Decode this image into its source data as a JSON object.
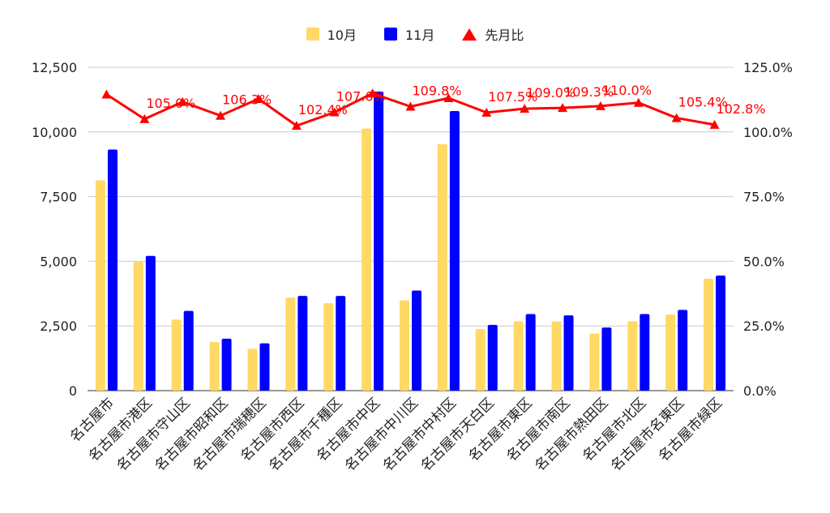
{
  "chart_data": {
    "type": "bar",
    "categories": [
      "名古屋市",
      "名古屋市港区",
      "名古屋市守山区",
      "名古屋市昭和区",
      "名古屋市瑞穂区",
      "名古屋市西区",
      "名古屋市千種区",
      "名古屋市中区",
      "名古屋市中川区",
      "名古屋市中村区",
      "名古屋市天白区",
      "名古屋市東区",
      "名古屋市南区",
      "名古屋市熱田区",
      "名古屋市北区",
      "名古屋市名東区",
      "名古屋市緑区"
    ],
    "series": [
      {
        "name": "10月",
        "color": "#ffd966",
        "axis": "left",
        "values": [
          8130,
          4980,
          2750,
          1880,
          1620,
          3600,
          3380,
          10130,
          3490,
          9530,
          2380,
          2680,
          2680,
          2210,
          2680,
          2940,
          4330
        ]
      },
      {
        "name": "11月",
        "color": "#0000ff",
        "axis": "left",
        "values": [
          9320,
          5210,
          3080,
          2010,
          1830,
          3660,
          3660,
          11560,
          3870,
          10810,
          2540,
          2960,
          2910,
          2440,
          2960,
          3120,
          4450
        ]
      },
      {
        "name": "先月比",
        "color": "#ff0000",
        "axis": "right",
        "type": "line",
        "marker": "triangle",
        "values": [
          114.5,
          105.0,
          111.6,
          106.3,
          112.8,
          102.4,
          107.6,
          114.9,
          109.8,
          113.1,
          107.5,
          109.0,
          109.3,
          110.0,
          111.3,
          105.4,
          102.8
        ]
      }
    ],
    "data_labels": {
      "1": "105.0%",
      "3": "106.3%",
      "5": "102.4%",
      "6": "107.6%",
      "8": "109.8%",
      "10": "107.5%",
      "11": "109.0%",
      "12": "109.3%",
      "13": "110.0%",
      "15": "105.4%",
      "16": "102.8%"
    },
    "y_left": {
      "min": 0,
      "max": 12500,
      "ticks": [
        "0",
        "2,500",
        "5,000",
        "7,500",
        "10,000",
        "12,500"
      ]
    },
    "y_right": {
      "min": 0,
      "max": 125,
      "ticks": [
        "0.0%",
        "25.0%",
        "50.0%",
        "75.0%",
        "100.0%",
        "125.0%"
      ]
    },
    "grid": true,
    "legend_position": "top"
  }
}
